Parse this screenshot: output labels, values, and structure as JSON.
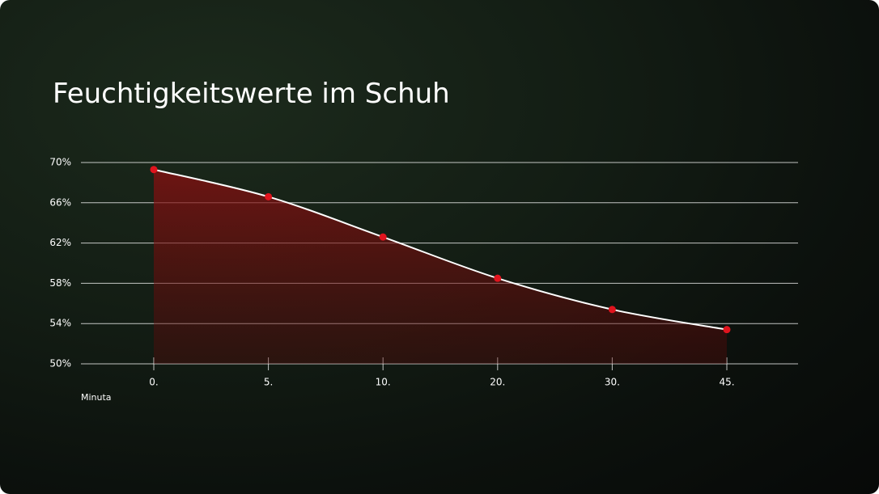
{
  "chart_data": {
    "type": "line",
    "title": "Feuchtigkeitswerte im Schuh",
    "x_label": "Minuta",
    "categories": [
      "0.",
      "5.",
      "10.",
      "20.",
      "30.",
      "45."
    ],
    "series": [
      {
        "color": "#e0141e",
        "values": [
          69.3,
          66.6,
          62.6,
          58.5,
          55.4,
          53.4
        ]
      }
    ],
    "ylim": [
      50,
      70
    ],
    "yticks": [
      {
        "value": 50,
        "label": "50%"
      },
      {
        "value": 54,
        "label": "54%"
      },
      {
        "value": 58,
        "label": "58%"
      },
      {
        "value": 62,
        "label": "62%"
      },
      {
        "value": 66,
        "label": "66%"
      },
      {
        "value": 70,
        "label": "70%"
      }
    ],
    "grid": true,
    "area": true
  }
}
